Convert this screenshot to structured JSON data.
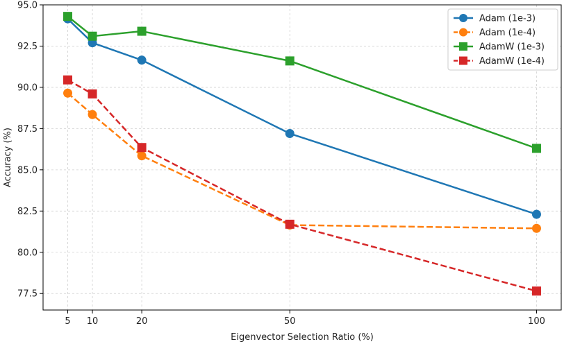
{
  "chart_data": {
    "type": "line",
    "title": "",
    "xlabel": "Eigenvector Selection Ratio (%)",
    "ylabel": "Accuracy (%)",
    "x": [
      5,
      10,
      20,
      50,
      100
    ],
    "xlim": [
      0,
      105
    ],
    "ylim": [
      76.5,
      95.0
    ],
    "xticks": [
      5,
      10,
      20,
      50,
      100
    ],
    "xtick_labels": [
      "5",
      "10",
      "20",
      "50",
      "100"
    ],
    "yticks": [
      77.5,
      80.0,
      82.5,
      85.0,
      87.5,
      90.0,
      92.5,
      95.0
    ],
    "ytick_labels": [
      "77.5",
      "80.0",
      "82.5",
      "85.0",
      "87.5",
      "90.0",
      "92.5",
      "95.0"
    ],
    "grid": true,
    "legend_position": "top-right",
    "series": [
      {
        "name": "Adam (1e-3)",
        "values": [
          94.15,
          92.7,
          91.65,
          87.2,
          82.3
        ],
        "color": "#1f77b4",
        "linestyle": "solid",
        "marker": "circle"
      },
      {
        "name": "Adam (1e-4)",
        "values": [
          89.65,
          88.35,
          85.85,
          81.65,
          81.45
        ],
        "color": "#ff7f0e",
        "linestyle": "dashed",
        "marker": "circle"
      },
      {
        "name": "AdamW (1e-3)",
        "values": [
          94.3,
          93.1,
          93.4,
          91.6,
          86.3
        ],
        "color": "#2ca02c",
        "linestyle": "solid",
        "marker": "square"
      },
      {
        "name": "AdamW (1e-4)",
        "values": [
          90.45,
          89.6,
          86.35,
          81.7,
          77.65
        ],
        "color": "#d62728",
        "linestyle": "dashed",
        "marker": "square"
      }
    ]
  }
}
